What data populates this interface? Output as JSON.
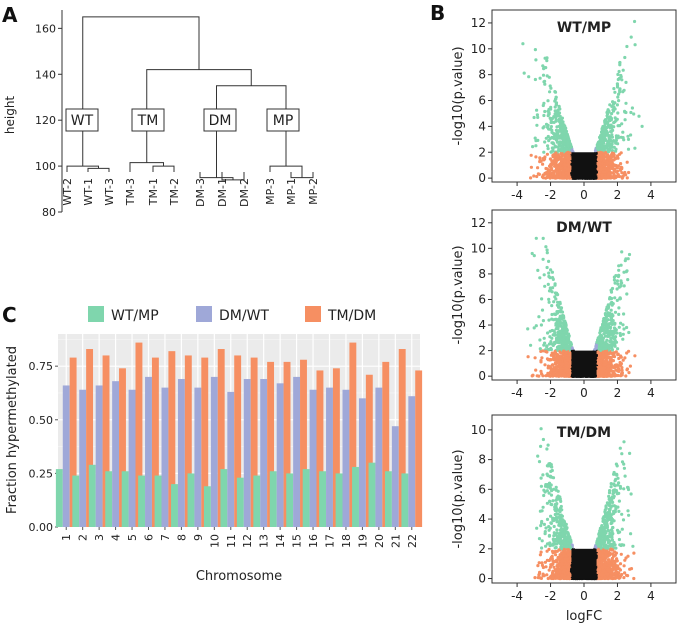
{
  "panels": {
    "a": "A",
    "b": "B",
    "c": "C"
  },
  "colors": {
    "wt_mp": "#7fd6ad",
    "dm_wt": "#9fa8d8",
    "tm_dm": "#f68f62",
    "sig": "#7fd6ad",
    "lowfc": "#9fa8d8",
    "nonsig": "#f68f62",
    "dark": "#111111",
    "grid_bg": "#ebebeb"
  },
  "chart_data": [
    {
      "type": "dendrogram",
      "ylabel": "height",
      "yticks": [
        80,
        100,
        120,
        140,
        160
      ],
      "ylim": [
        80,
        168
      ],
      "leaves": [
        "WT-2",
        "WT-1",
        "WT-3",
        "TM-3",
        "TM-1",
        "TM-2",
        "DM-3",
        "DM-1",
        "DM-2",
        "MP-3",
        "MP-1",
        "MP-2"
      ],
      "clusters": [
        "WT",
        "TM",
        "DM",
        "MP"
      ],
      "merges": [
        {
          "a": "WT-1",
          "b": "WT-3",
          "height": 99
        },
        {
          "a": "WT-2",
          "b": "WT-1+WT-3",
          "height": 100
        },
        {
          "a": "TM-1",
          "b": "TM-2",
          "height": 100
        },
        {
          "a": "TM-3",
          "b": "TM-1+TM-2",
          "height": 101.5
        },
        {
          "a": "DM-1",
          "b": "DM-2",
          "height": 94
        },
        {
          "a": "DM-3",
          "b": "DM-1+DM-2",
          "height": 95
        },
        {
          "a": "MP-1",
          "b": "MP-2",
          "height": 95
        },
        {
          "a": "MP-3",
          "b": "MP-1+MP-2",
          "height": 100
        },
        {
          "a": "DM",
          "b": "MP",
          "height": 135
        },
        {
          "a": "TM",
          "b": "DM+MP",
          "height": 142
        },
        {
          "a": "WT",
          "b": "TM+DM+MP",
          "height": 165
        }
      ]
    },
    {
      "type": "bar",
      "title": "",
      "xlabel": "Chromosome",
      "ylabel": "Fraction hypermethylated",
      "ylim": [
        0,
        0.9
      ],
      "yticks": [
        "0.00",
        "0.25",
        "0.50",
        "0.75"
      ],
      "categories": [
        "1",
        "2",
        "3",
        "4",
        "5",
        "6",
        "7",
        "8",
        "9",
        "10",
        "11",
        "12",
        "13",
        "14",
        "15",
        "16",
        "17",
        "18",
        "19",
        "20",
        "21",
        "22"
      ],
      "legend": "top",
      "series": [
        {
          "name": "WT/MP",
          "values": [
            0.27,
            0.24,
            0.29,
            0.26,
            0.26,
            0.24,
            0.24,
            0.2,
            0.25,
            0.19,
            0.27,
            0.23,
            0.24,
            0.26,
            0.25,
            0.27,
            0.26,
            0.25,
            0.28,
            0.3,
            0.26,
            0.25
          ]
        },
        {
          "name": "DM/WT",
          "values": [
            0.66,
            0.64,
            0.66,
            0.68,
            0.64,
            0.7,
            0.65,
            0.69,
            0.65,
            0.7,
            0.63,
            0.69,
            0.69,
            0.67,
            0.7,
            0.64,
            0.65,
            0.64,
            0.6,
            0.65,
            0.47,
            0.61
          ]
        },
        {
          "name": "TM/DM",
          "values": [
            0.79,
            0.83,
            0.8,
            0.74,
            0.86,
            0.79,
            0.82,
            0.8,
            0.79,
            0.83,
            0.8,
            0.79,
            0.77,
            0.77,
            0.78,
            0.73,
            0.74,
            0.86,
            0.71,
            0.77,
            0.83,
            0.73
          ]
        }
      ]
    },
    {
      "type": "scatter",
      "title": "WT/MP",
      "xlabel": "",
      "ylabel": "-log10(p.value)",
      "xlim": [
        -5.5,
        5.5
      ],
      "ylim": [
        -0.3,
        13
      ],
      "xticks": [
        "-4",
        "-2",
        "0",
        "2",
        "4"
      ],
      "yticks": [
        "0",
        "2",
        "4",
        "6",
        "8",
        "10",
        "12"
      ],
      "max_y": 12.5,
      "spread": 2.2,
      "sig_threshold": 2,
      "fc_threshold": 0.75
    },
    {
      "type": "scatter",
      "title": "DM/WT",
      "xlabel": "",
      "ylabel": "-log10(p.value)",
      "xlim": [
        -5.5,
        5.5
      ],
      "ylim": [
        -0.3,
        13
      ],
      "xticks": [
        "-4",
        "-2",
        "0",
        "2",
        "4"
      ],
      "yticks": [
        "0",
        "2",
        "4",
        "6",
        "8",
        "10",
        "12"
      ],
      "max_y": 12.2,
      "spread": 2.0,
      "sig_threshold": 2,
      "fc_threshold": 0.75
    },
    {
      "type": "scatter",
      "title": "TM/DM",
      "xlabel": "logFC",
      "ylabel": "-log10(p.value)",
      "xlim": [
        -5.5,
        5.5
      ],
      "ylim": [
        -0.3,
        11
      ],
      "xticks": [
        "-4",
        "-2",
        "0",
        "2",
        "4"
      ],
      "yticks": [
        "0",
        "2",
        "4",
        "6",
        "8",
        "10"
      ],
      "max_y": 10.4,
      "spread": 1.8,
      "sig_threshold": 2,
      "fc_threshold": 0.75
    }
  ]
}
